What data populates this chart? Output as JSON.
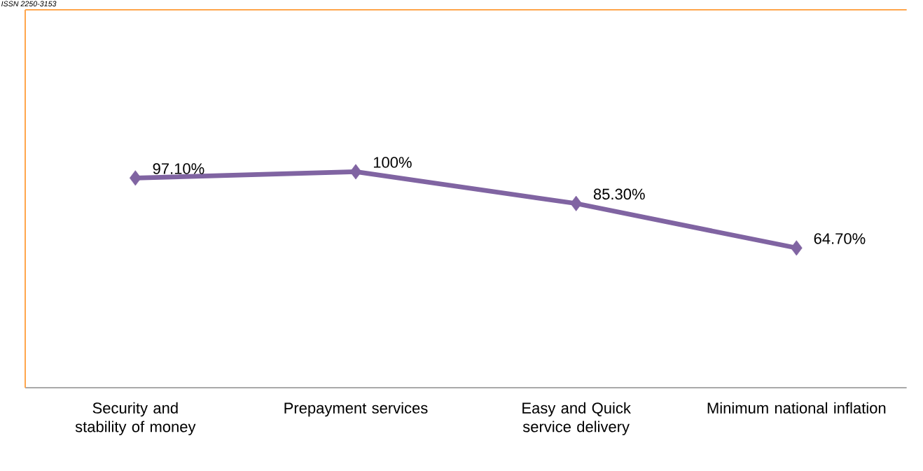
{
  "chart_data": {
    "type": "line",
    "categories": [
      "Security and stability of money",
      "Prepayment services",
      "Easy and Quick service delivery",
      "Minimum national  inflation"
    ],
    "series": [
      {
        "color": "#8064a2",
        "values": [
          97.1,
          100,
          85.3,
          64.7
        ],
        "value_labels": [
          "97.10%",
          "100%",
          "85.30%",
          "64.70%"
        ]
      }
    ],
    "ylim": [
      0,
      175
    ],
    "marker": "diamond",
    "tick_labels": "x",
    "annotations": [
      "ISSN 2250-3153"
    ]
  }
}
